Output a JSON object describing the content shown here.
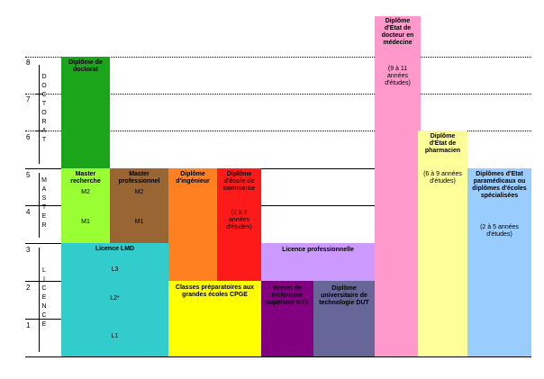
{
  "axis": {
    "numbers": [
      "8",
      "7",
      "6",
      "5",
      "4",
      "3",
      "2",
      "1"
    ],
    "doctorat_letters": [
      "D",
      "O",
      "C",
      "T",
      "O",
      "R",
      "A",
      "T"
    ],
    "master_letters": [
      "M",
      "A",
      "S",
      "T",
      "E",
      "R"
    ],
    "licence_letters": [
      "L",
      "I",
      "C",
      "E",
      "N",
      "C",
      "E"
    ]
  },
  "blocks": {
    "doctorat": {
      "title": "Diplôme de doctorat",
      "color": "#1aa51a"
    },
    "master_recherche": {
      "title": "Master recherche",
      "m2": "M2",
      "m1": "M1",
      "color": "#99ff33"
    },
    "master_pro": {
      "title": "Master professionnel",
      "m2": "M2",
      "m1": "M1",
      "color": "#996633"
    },
    "ingenieur": {
      "title": "Diplôme d'ingénieur",
      "color": "#ff8020"
    },
    "commerce": {
      "title": "Diplôme d'école de commerce",
      "note": "(2 à 3 années d'études)",
      "color": "#ff1a1a"
    },
    "licence_lmd": {
      "title": "Licence LMD",
      "l3": "L3",
      "l2": "L2*",
      "l1": "L1",
      "color": "#33cccc"
    },
    "cpge": {
      "title": "Classes préparatoires aux grandes écoles CPGE",
      "color": "#ffff00"
    },
    "licence_pro": {
      "title": "Licence professionnelle",
      "color": "#cc99ff"
    },
    "bts": {
      "title": "Brevet de technicien supérieur BTS",
      "color": "#800080"
    },
    "dut": {
      "title": "Diplôme universitaire de technologie DUT",
      "color": "#666699"
    },
    "medecine": {
      "title": "Diplôme d'Etat de docteur en médecine",
      "note": "(9 à 11 années d'études)",
      "color": "#ff99cc"
    },
    "pharmacien": {
      "title": "Diplôme d'Etat de pharmacien",
      "note": "(6 à 9 années d'études)",
      "color": "#ffff99"
    },
    "paramedicaux": {
      "title": "Diplômes d'Etat paramédicaux ou diplômes d'écoles spécialisées",
      "note": "(2 à 5 années d'études)",
      "color": "#99ccff"
    }
  }
}
